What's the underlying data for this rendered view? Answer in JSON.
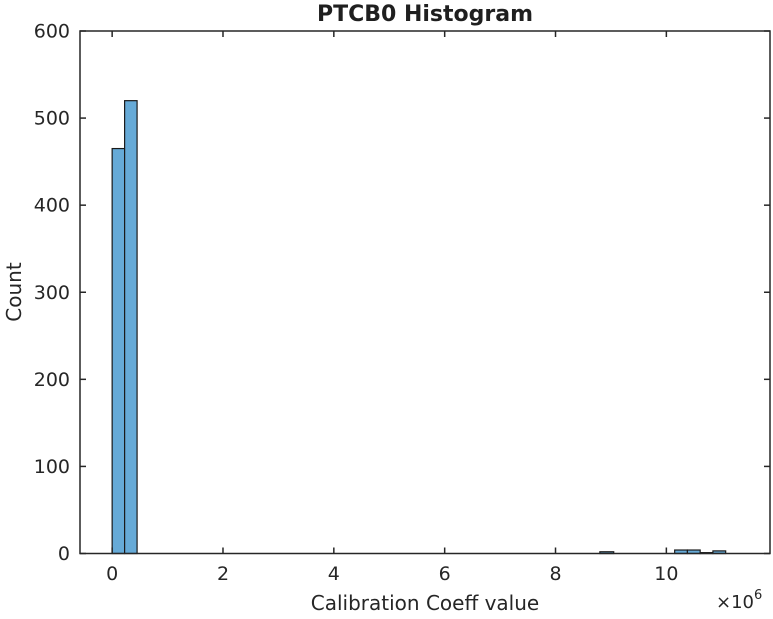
{
  "figure": {
    "title": "PTCB0 Histogram",
    "xlabel": "Calibration Coeff value",
    "ylabel": "Count",
    "x_multiplier_base": "×10",
    "x_multiplier_exponent": "6"
  },
  "chart_data": {
    "type": "bar",
    "subtype": "histogram",
    "title": "PTCB0 Histogram",
    "xlabel": "Calibration Coeff value",
    "ylabel": "Count",
    "x_unit_multiplier": 1000000,
    "x_multiplier_text": "×10^6",
    "xlim": [
      -0.58,
      11.87
    ],
    "ylim": [
      0,
      600
    ],
    "x_ticks": [
      0,
      2,
      4,
      6,
      8,
      10
    ],
    "x_tick_labels": [
      "0",
      "2",
      "4",
      "6",
      "8",
      "10"
    ],
    "y_ticks": [
      0,
      100,
      200,
      300,
      400,
      500,
      600
    ],
    "y_tick_labels": [
      "0",
      "100",
      "200",
      "300",
      "400",
      "500",
      "600"
    ],
    "grid": false,
    "legend": "none",
    "bins_x1e6": [
      {
        "x0": 0.0,
        "x1": 0.225,
        "count": 465
      },
      {
        "x0": 0.225,
        "x1": 0.45,
        "count": 520
      },
      {
        "x0": 8.8,
        "x1": 9.05,
        "count": 2
      },
      {
        "x0": 10.15,
        "x1": 10.38,
        "count": 4
      },
      {
        "x0": 10.38,
        "x1": 10.61,
        "count": 4
      },
      {
        "x0": 10.61,
        "x1": 10.84,
        "count": 1
      },
      {
        "x0": 10.84,
        "x1": 11.07,
        "count": 3
      }
    ],
    "colors": {
      "bar_fill": "#66AAD7",
      "bar_edge": "#1a1a1a",
      "axis": "#262626",
      "text": "#262626",
      "background": "#ffffff"
    }
  }
}
